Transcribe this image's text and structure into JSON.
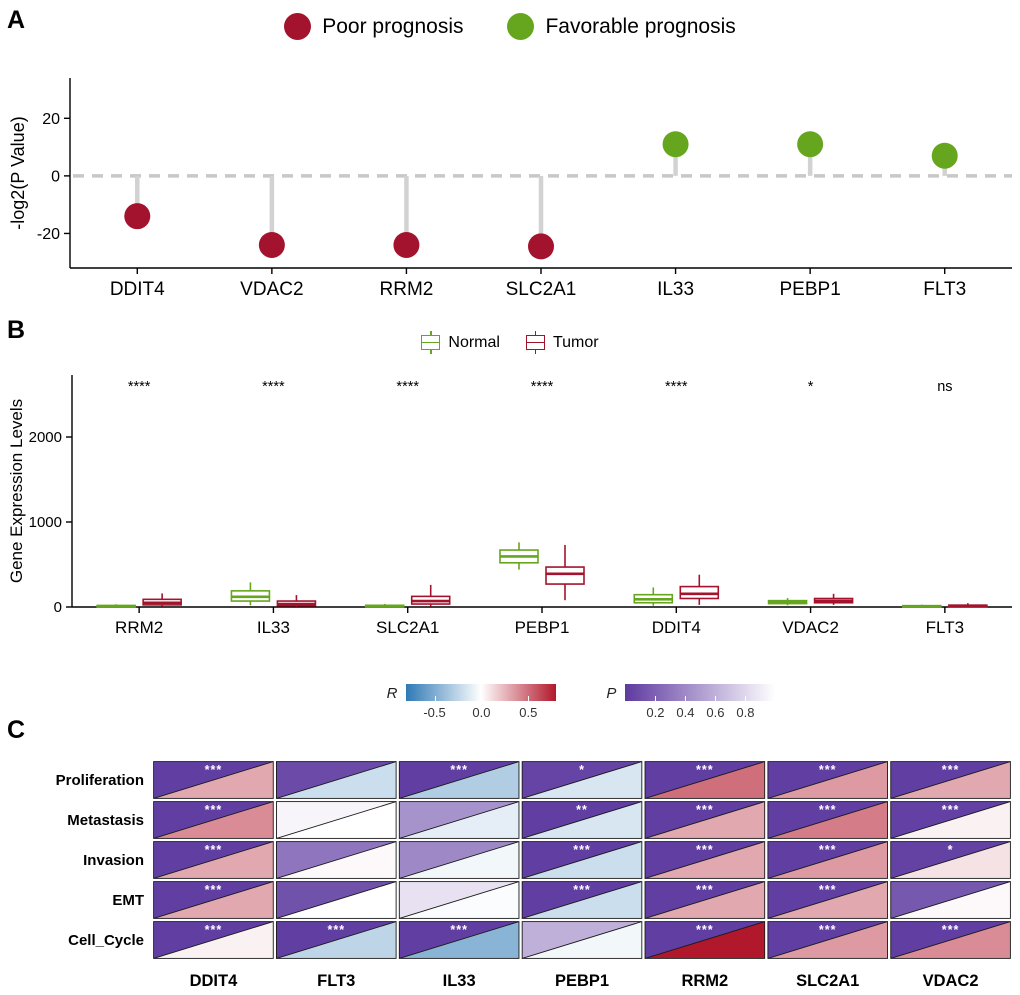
{
  "panels": {
    "a": "A",
    "b": "B",
    "c": "C"
  },
  "chart_data": [
    {
      "id": "prognosis-lollipop",
      "type": "lollipop",
      "ylabel": "-log2(P Value)",
      "ylim": [
        -32,
        34
      ],
      "yticks": [
        -20,
        0,
        20
      ],
      "zero_line": 0,
      "stem_color": "#d2d2d2",
      "legend": [
        {
          "key": "poor",
          "label": "Poor prognosis",
          "color": "#a3132d"
        },
        {
          "key": "favorable",
          "label": "Favorable prognosis",
          "color": "#66a61e"
        }
      ],
      "categories": [
        "DDIT4",
        "VDAC2",
        "RRM2",
        "SLC2A1",
        "IL33",
        "PEBP1",
        "FLT3"
      ],
      "values": [
        -14,
        -24,
        -24,
        -24.5,
        11,
        11,
        7
      ],
      "groups": [
        "poor",
        "poor",
        "poor",
        "poor",
        "favorable",
        "favorable",
        "favorable"
      ]
    },
    {
      "id": "expression-boxplot",
      "type": "boxplot",
      "ylabel": "Gene Expression Levels",
      "ylim": [
        -60,
        2730
      ],
      "yticks": [
        0,
        1000,
        2000
      ],
      "legend": [
        {
          "key": "normal",
          "label": "Normal",
          "color": "#66a61e"
        },
        {
          "key": "tumor",
          "label": "Tumor",
          "color": "#a3132d"
        }
      ],
      "categories": [
        "RRM2",
        "IL33",
        "SLC2A1",
        "PEBP1",
        "DDIT4",
        "VDAC2",
        "FLT3"
      ],
      "significance": [
        "****",
        "****",
        "****",
        "****",
        "****",
        "*",
        "ns"
      ],
      "series": [
        {
          "name": "Normal",
          "color": "#66a61e",
          "boxes": [
            {
              "lo": 1,
              "q1": 4,
              "med": 9,
              "q3": 18,
              "hi": 32
            },
            {
              "lo": 20,
              "q1": 70,
              "med": 120,
              "q3": 190,
              "hi": 290
            },
            {
              "lo": 1,
              "q1": 5,
              "med": 11,
              "q3": 20,
              "hi": 36
            },
            {
              "lo": 440,
              "q1": 520,
              "med": 595,
              "q3": 670,
              "hi": 760
            },
            {
              "lo": 15,
              "q1": 50,
              "med": 90,
              "q3": 145,
              "hi": 230
            },
            {
              "lo": 20,
              "q1": 40,
              "med": 57,
              "q3": 75,
              "hi": 105
            },
            {
              "lo": 1,
              "q1": 4,
              "med": 8,
              "q3": 16,
              "hi": 28
            }
          ]
        },
        {
          "name": "Tumor",
          "color": "#a3132d",
          "boxes": [
            {
              "lo": 4,
              "q1": 25,
              "med": 50,
              "q3": 90,
              "hi": 160
            },
            {
              "lo": 3,
              "q1": 15,
              "med": 35,
              "q3": 70,
              "hi": 140
            },
            {
              "lo": 4,
              "q1": 35,
              "med": 70,
              "q3": 125,
              "hi": 260
            },
            {
              "lo": 80,
              "q1": 270,
              "med": 390,
              "q3": 470,
              "hi": 730
            },
            {
              "lo": 25,
              "q1": 100,
              "med": 155,
              "q3": 240,
              "hi": 380
            },
            {
              "lo": 25,
              "q1": 50,
              "med": 72,
              "q3": 100,
              "hi": 155
            },
            {
              "lo": 1,
              "q1": 5,
              "med": 12,
              "q3": 22,
              "hi": 45
            }
          ]
        }
      ]
    },
    {
      "id": "correlation-heatmap",
      "type": "heatmap-triangle",
      "rows": [
        "Proliferation",
        "Metastasis",
        "Invasion",
        "EMT",
        "Cell_Cycle"
      ],
      "columns": [
        "DDIT4",
        "FLT3",
        "IL33",
        "PEBP1",
        "RRM2",
        "SLC2A1",
        "VDAC2"
      ],
      "r_legend": {
        "label": "R",
        "min": -0.8,
        "max": 0.8,
        "colors": [
          "#2f79b5",
          "#ffffff",
          "#b2182b"
        ],
        "ticks": [
          {
            "label": "-0.5",
            "value": -0.5
          },
          {
            "label": "0.0",
            "value": 0
          },
          {
            "label": "0.5",
            "value": 0.5
          }
        ]
      },
      "p_legend": {
        "label": "P",
        "min": 0,
        "max": 1,
        "colors": [
          "#5e3aa0",
          "#ffffff"
        ],
        "ticks": [
          {
            "label": "0.2",
            "value": 0.2
          },
          {
            "label": "0.4",
            "value": 0.4
          },
          {
            "label": "0.6",
            "value": 0.6
          },
          {
            "label": "0.8",
            "value": 0.8
          }
        ]
      },
      "star_color": "#ffffff",
      "cells": [
        [
          {
            "r": 0.3,
            "p": 0.02,
            "sig": "***"
          },
          {
            "r": -0.2,
            "p": 0.08,
            "sig": ""
          },
          {
            "r": -0.3,
            "p": 0.02,
            "sig": "***"
          },
          {
            "r": -0.15,
            "p": 0.05,
            "sig": "*"
          },
          {
            "r": 0.5,
            "p": 0.02,
            "sig": "***"
          },
          {
            "r": 0.35,
            "p": 0.02,
            "sig": "***"
          },
          {
            "r": 0.3,
            "p": 0.02,
            "sig": "***"
          }
        ],
        [
          {
            "r": 0.4,
            "p": 0.02,
            "sig": "***"
          },
          {
            "r": 0.0,
            "p": 0.95,
            "sig": ""
          },
          {
            "r": -0.1,
            "p": 0.45,
            "sig": ""
          },
          {
            "r": -0.15,
            "p": 0.02,
            "sig": "**"
          },
          {
            "r": 0.3,
            "p": 0.02,
            "sig": "***"
          },
          {
            "r": 0.45,
            "p": 0.02,
            "sig": "***"
          },
          {
            "r": 0.05,
            "p": 0.03,
            "sig": "***"
          }
        ],
        [
          {
            "r": 0.3,
            "p": 0.02,
            "sig": "***"
          },
          {
            "r": 0.02,
            "p": 0.3,
            "sig": ""
          },
          {
            "r": -0.05,
            "p": 0.4,
            "sig": ""
          },
          {
            "r": -0.2,
            "p": 0.02,
            "sig": "***"
          },
          {
            "r": 0.3,
            "p": 0.02,
            "sig": "***"
          },
          {
            "r": 0.35,
            "p": 0.02,
            "sig": "***"
          },
          {
            "r": 0.1,
            "p": 0.04,
            "sig": "*"
          }
        ],
        [
          {
            "r": 0.3,
            "p": 0.02,
            "sig": "***"
          },
          {
            "r": 0.0,
            "p": 0.12,
            "sig": ""
          },
          {
            "r": -0.02,
            "p": 0.85,
            "sig": ""
          },
          {
            "r": -0.2,
            "p": 0.02,
            "sig": "***"
          },
          {
            "r": 0.3,
            "p": 0.02,
            "sig": "***"
          },
          {
            "r": 0.3,
            "p": 0.02,
            "sig": "***"
          },
          {
            "r": 0.02,
            "p": 0.15,
            "sig": ""
          }
        ],
        [
          {
            "r": 0.05,
            "p": 0.02,
            "sig": "***"
          },
          {
            "r": -0.25,
            "p": 0.02,
            "sig": "***"
          },
          {
            "r": -0.45,
            "p": 0.02,
            "sig": "***"
          },
          {
            "r": -0.05,
            "p": 0.6,
            "sig": ""
          },
          {
            "r": 0.8,
            "p": 0.02,
            "sig": "***"
          },
          {
            "r": 0.35,
            "p": 0.02,
            "sig": "***"
          },
          {
            "r": 0.4,
            "p": 0.02,
            "sig": "***"
          }
        ]
      ]
    }
  ]
}
